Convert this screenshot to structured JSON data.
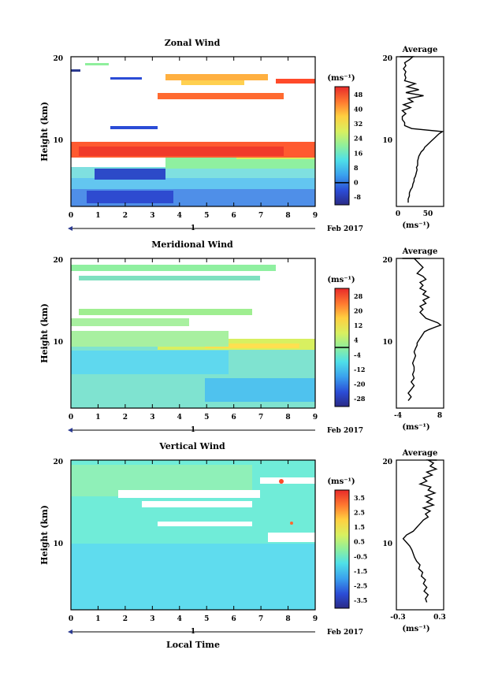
{
  "chart_data": [
    {
      "type": "heatmap",
      "title": "Zonal Wind",
      "ylabel": "Height (km)",
      "yticks": [
        "10",
        "20"
      ],
      "xticks": [
        "0",
        "1",
        "2",
        "3",
        "4",
        "5",
        "6",
        "7",
        "8",
        "9"
      ],
      "date_tick": "1",
      "date_label": "Feb 2017",
      "xlim": [
        0,
        9
      ],
      "ylim": [
        0,
        20
      ],
      "colorbar": {
        "unit": "(ms⁻¹)",
        "labels": [
          "48",
          "40",
          "32",
          "24",
          "16",
          "8",
          "0",
          "-8"
        ],
        "range": [
          -12,
          52
        ],
        "zero_line": 0
      },
      "profile": {
        "title": "Average",
        "xticks": [
          "0",
          "50"
        ],
        "xlabel": "(ms⁻¹)",
        "yticks": [
          "10",
          "20"
        ],
        "xlim": [
          0,
          80
        ],
        "x": [
          20,
          20,
          22,
          22,
          24,
          27,
          28,
          30,
          30,
          32,
          33,
          34,
          35,
          34,
          36,
          36,
          36,
          37,
          38,
          40,
          42,
          46,
          48,
          52,
          56,
          60,
          64,
          68,
          72,
          78,
          26,
          14,
          14,
          10,
          10,
          16,
          10,
          24,
          12,
          28,
          20,
          46,
          16,
          38,
          18,
          32,
          14,
          16,
          14,
          16,
          12,
          16,
          14,
          22,
          28,
          20,
          28,
          24,
          26,
          20,
          16,
          6,
          10,
          14
        ],
        "y": [
          0.5,
          1.0,
          1.4,
          1.8,
          2.2,
          2.6,
          3.0,
          3.4,
          3.7,
          4.0,
          4.3,
          4.6,
          4.9,
          5.2,
          5.5,
          5.8,
          6.1,
          6.4,
          6.7,
          7.0,
          7.3,
          7.6,
          7.9,
          8.2,
          8.5,
          8.8,
          9.1,
          9.4,
          9.7,
          10.0,
          10.4,
          10.8,
          11.2,
          11.6,
          12.0,
          12.4,
          12.8,
          13.2,
          13.6,
          14.0,
          14.4,
          14.8,
          15.2,
          15.6,
          16.0,
          16.4,
          16.8,
          17.2,
          17.6,
          18.0,
          18.4,
          18.8,
          19.2,
          19.6,
          20.0,
          20.3,
          20.6,
          20.8,
          21.0,
          21.2,
          21.4,
          21.6,
          21.8,
          22.0
        ]
      }
    },
    {
      "type": "heatmap",
      "title": "Meridional Wind",
      "ylabel": "Height (km)",
      "yticks": [
        "10",
        "20"
      ],
      "xticks": [
        "0",
        "1",
        "2",
        "3",
        "4",
        "5",
        "6",
        "7",
        "8",
        "9"
      ],
      "date_tick": "1",
      "date_label": "Feb 2017",
      "xlim": [
        0,
        9
      ],
      "ylim": [
        0,
        20
      ],
      "colorbar": {
        "unit": "(ms⁻¹)",
        "labels": [
          "28",
          "20",
          "12",
          "4",
          "-4",
          "-12",
          "-20",
          "-28"
        ],
        "range": [
          -32,
          32
        ],
        "zero_line": 0
      },
      "profile": {
        "title": "Average",
        "xticks": [
          "-4",
          "8"
        ],
        "xlabel": "(ms⁻¹)",
        "yticks": [
          "10",
          "20"
        ],
        "xlim": [
          -6,
          10
        ],
        "x": [
          -2,
          -1,
          -2,
          -1,
          0,
          -1,
          0,
          -0.5,
          0,
          0,
          -0.5,
          0,
          0.5,
          0,
          0.5,
          1,
          1,
          1.5,
          2,
          2.5,
          3,
          3.5,
          5,
          7,
          9,
          8,
          6,
          4,
          3,
          2,
          3,
          2,
          4,
          3,
          5,
          3,
          4,
          2,
          3,
          2,
          4,
          3,
          1,
          2,
          3,
          2,
          1,
          0,
          2,
          -1,
          1,
          -2,
          0,
          -3,
          -2,
          -4
        ],
        "y": [
          1.0,
          1.5,
          2.0,
          2.5,
          3.0,
          3.5,
          4.0,
          4.5,
          5.0,
          5.5,
          6.0,
          6.5,
          7.0,
          7.5,
          8.0,
          8.4,
          8.7,
          9.0,
          9.3,
          9.6,
          9.9,
          10.2,
          10.5,
          10.8,
          11.1,
          11.4,
          11.7,
          12.0,
          12.4,
          12.8,
          13.2,
          13.6,
          14.0,
          14.4,
          14.8,
          15.2,
          15.6,
          16.0,
          16.4,
          16.8,
          17.2,
          17.6,
          18.0,
          18.4,
          18.8,
          19.2,
          19.6,
          20.0,
          20.4,
          20.8,
          21.2,
          21.6,
          22.0,
          22.4,
          22.8,
          23.0
        ]
      }
    },
    {
      "type": "heatmap",
      "title": "Vertical Wind",
      "ylabel": "Height (km)",
      "xlabel": "Local Time",
      "yticks": [
        "10",
        "20"
      ],
      "xticks": [
        "0",
        "1",
        "2",
        "3",
        "4",
        "5",
        "6",
        "7",
        "8",
        "9"
      ],
      "date_tick": "1",
      "date_label": "Feb 2017",
      "xlim": [
        0,
        9
      ],
      "ylim": [
        0,
        20
      ],
      "colorbar": {
        "unit": "(ms⁻¹)",
        "labels": [
          "3.5",
          "2.5",
          "1.5",
          "0.5",
          "-0.5",
          "-1.5",
          "-2.5",
          "-3.5"
        ],
        "range": [
          -4,
          4
        ]
      },
      "profile": {
        "title": "Average",
        "xticks": [
          "-0.3",
          "0.3"
        ],
        "xlabel": "(ms⁻¹)",
        "yticks": [
          "10",
          "20"
        ],
        "xlim": [
          -0.35,
          0.35
        ],
        "x": [
          0.1,
          0.08,
          0.12,
          0.06,
          0.1,
          0.05,
          0.08,
          0.02,
          0.04,
          -0.02,
          0.0,
          -0.05,
          -0.08,
          -0.1,
          -0.12,
          -0.15,
          -0.2,
          -0.25,
          -0.2,
          -0.1,
          -0.05,
          0.0,
          0.05,
          0.12,
          0.08,
          0.15,
          0.05,
          0.2,
          0.1,
          0.18,
          0.08,
          0.22,
          0.12,
          0.16,
          0.0,
          0.1,
          0.05,
          0.18,
          0.1,
          0.24,
          0.15,
          0.2,
          0.12,
          0.25,
          0.16
        ],
        "y": [
          1.0,
          1.5,
          2.0,
          2.5,
          3.0,
          3.5,
          4.0,
          4.5,
          5.0,
          5.5,
          6.0,
          6.5,
          7.0,
          7.5,
          8.0,
          8.5,
          9.0,
          9.5,
          10.0,
          10.5,
          11.0,
          11.5,
          12.0,
          12.4,
          12.8,
          13.2,
          13.6,
          14.0,
          14.4,
          14.8,
          15.2,
          15.6,
          16.0,
          16.4,
          16.8,
          17.2,
          17.6,
          18.0,
          18.4,
          18.8,
          19.2,
          19.6,
          20.0,
          20.4,
          20.8
        ]
      }
    }
  ]
}
